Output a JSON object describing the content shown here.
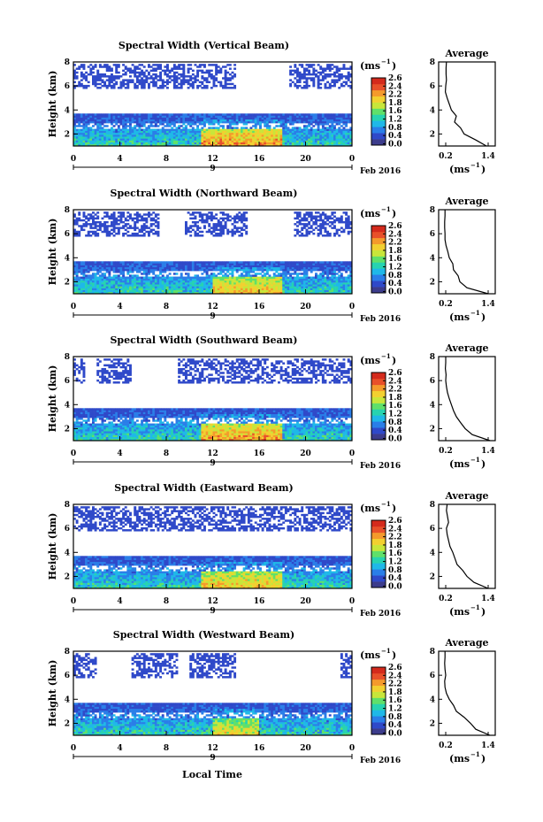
{
  "figure": {
    "xlabel": "Local Time",
    "date_label": "Feb 2016",
    "colorbar_unit": "(ms",
    "colorbar_unit_sup": "−1",
    "colorbar_ticks": [
      "2.6",
      "2.4",
      "2.2",
      "1.8",
      "1.6",
      "1.2",
      "0.8",
      "0.4",
      "0.0"
    ],
    "colorbar_range": [
      0,
      2.6
    ],
    "colormap": [
      "#ffffff",
      "#3c3c8c",
      "#2f49c9",
      "#2a7ee8",
      "#1fb8e8",
      "#27d3b0",
      "#5fe06a",
      "#c8e63a",
      "#f2d030",
      "#f49a2c",
      "#e8502a",
      "#d42a1c"
    ]
  },
  "chart_data": [
    {
      "type": "heatmap",
      "title": "Spectral Width (Vertical Beam)",
      "ylabel": "Height (km)",
      "xlabel": "",
      "x_ticks": [
        "0",
        "4",
        "8",
        "12",
        "16",
        "20",
        "0"
      ],
      "day_marker": "9",
      "xlim": [
        0,
        24
      ],
      "ylim": [
        1,
        8
      ],
      "y_ticks": [
        "2",
        "4",
        "6",
        "8"
      ],
      "summary": {
        "low_layer_km": [
          1,
          3.7
        ],
        "high_sparse_layer_km": [
          5.8,
          7.9
        ],
        "high_sparse_gaps_h": [
          [
            14,
            18.5
          ]
        ],
        "peak_width_window_h": [
          11,
          18
        ],
        "peak_width_value": 2.4
      },
      "average_profile": {
        "title": "Average",
        "xlabel": "(ms",
        "xlabel_sup": "−1",
        "x_ticks": [
          "0.2",
          "1.4"
        ],
        "xlim": [
          0,
          1.6
        ],
        "ylim": [
          1,
          8
        ],
        "y_ticks": [
          "2",
          "4",
          "6",
          "8"
        ],
        "height_km": [
          1.0,
          1.5,
          2.0,
          2.5,
          3.0,
          3.5,
          4.0,
          4.5,
          5.0,
          5.5,
          6.0,
          6.5,
          7.0,
          7.5,
          8.0
        ],
        "width_ms": [
          1.35,
          1.05,
          0.72,
          0.62,
          0.45,
          0.5,
          0.36,
          0.3,
          0.24,
          0.19,
          0.2,
          0.22,
          0.21,
          0.21,
          0.22
        ]
      }
    },
    {
      "type": "heatmap",
      "title": "Spectral Width (Northward Beam)",
      "ylabel": "Height (km)",
      "xlabel": "",
      "x_ticks": [
        "0",
        "4",
        "8",
        "12",
        "16",
        "20",
        "0"
      ],
      "day_marker": "9",
      "xlim": [
        0,
        24
      ],
      "ylim": [
        1,
        8
      ],
      "y_ticks": [
        "2",
        "4",
        "6",
        "8"
      ],
      "summary": {
        "low_layer_km": [
          1,
          3.7
        ],
        "high_sparse_layer_km": [
          5.8,
          7.9
        ],
        "high_sparse_gaps_h": [
          [
            7.5,
            9.5
          ],
          [
            15,
            19
          ]
        ],
        "peak_width_window_h": [
          12,
          18
        ],
        "peak_width_value": 2.2
      },
      "average_profile": {
        "title": "Average",
        "xlabel": "(ms",
        "xlabel_sup": "−1",
        "x_ticks": [
          "0.2",
          "1.4"
        ],
        "xlim": [
          0,
          1.6
        ],
        "ylim": [
          1,
          8
        ],
        "y_ticks": [
          "2",
          "4",
          "6",
          "8"
        ],
        "height_km": [
          1.0,
          1.5,
          2.0,
          2.5,
          3.0,
          3.5,
          4.0,
          4.5,
          5.0,
          5.5,
          6.0,
          6.5,
          7.0,
          7.5,
          8.0
        ],
        "width_ms": [
          1.4,
          0.8,
          0.6,
          0.55,
          0.42,
          0.4,
          0.3,
          0.26,
          0.21,
          0.18,
          0.18,
          0.17,
          0.17,
          0.18,
          0.18
        ]
      }
    },
    {
      "type": "heatmap",
      "title": "Spectral Width (Southward Beam)",
      "ylabel": "Height (km)",
      "xlabel": "",
      "x_ticks": [
        "0",
        "4",
        "8",
        "12",
        "16",
        "20",
        "0"
      ],
      "day_marker": "9",
      "xlim": [
        0,
        24
      ],
      "ylim": [
        1,
        8
      ],
      "y_ticks": [
        "2",
        "4",
        "6",
        "8"
      ],
      "summary": {
        "low_layer_km": [
          1,
          3.7
        ],
        "high_sparse_layer_km": [
          5.8,
          7.9
        ],
        "high_sparse_gaps_h": [
          [
            1,
            2
          ],
          [
            5,
            9
          ]
        ],
        "peak_width_window_h": [
          11,
          18
        ],
        "peak_width_value": 2.4
      },
      "average_profile": {
        "title": "Average",
        "xlabel": "(ms",
        "xlabel_sup": "−1",
        "x_ticks": [
          "0.2",
          "1.4"
        ],
        "xlim": [
          0,
          1.6
        ],
        "ylim": [
          1,
          8
        ],
        "y_ticks": [
          "2",
          "4",
          "6",
          "8"
        ],
        "height_km": [
          1.0,
          1.5,
          2.0,
          2.5,
          3.0,
          3.5,
          4.0,
          4.5,
          5.0,
          5.5,
          6.0,
          6.5,
          7.0,
          7.5,
          8.0
        ],
        "width_ms": [
          1.45,
          0.95,
          0.75,
          0.62,
          0.5,
          0.42,
          0.36,
          0.3,
          0.25,
          0.22,
          0.2,
          0.21,
          0.19,
          0.2,
          0.2
        ]
      }
    },
    {
      "type": "heatmap",
      "title": "Spectral Width (Eastward Beam)",
      "ylabel": "Height (km)",
      "xlabel": "",
      "x_ticks": [
        "0",
        "4",
        "8",
        "12",
        "16",
        "20",
        "0"
      ],
      "day_marker": "9",
      "xlim": [
        0,
        24
      ],
      "ylim": [
        1,
        8
      ],
      "y_ticks": [
        "2",
        "4",
        "6",
        "8"
      ],
      "summary": {
        "low_layer_km": [
          1,
          3.7
        ],
        "high_sparse_layer_km": [
          5.8,
          7.9
        ],
        "high_sparse_gaps_h": [],
        "peak_width_window_h": [
          11,
          18
        ],
        "peak_width_value": 2.2
      },
      "average_profile": {
        "title": "Average",
        "xlabel": "(ms",
        "xlabel_sup": "−1",
        "x_ticks": [
          "0.2",
          "1.4"
        ],
        "xlim": [
          0,
          1.6
        ],
        "ylim": [
          1,
          8
        ],
        "y_ticks": [
          "2",
          "4",
          "6",
          "8"
        ],
        "height_km": [
          1.0,
          1.5,
          2.0,
          2.5,
          3.0,
          3.5,
          4.0,
          4.5,
          5.0,
          5.5,
          6.0,
          6.5,
          7.0,
          7.5,
          8.0
        ],
        "width_ms": [
          1.4,
          1.0,
          0.8,
          0.68,
          0.52,
          0.46,
          0.4,
          0.32,
          0.28,
          0.24,
          0.22,
          0.28,
          0.25,
          0.22,
          0.24
        ]
      }
    },
    {
      "type": "heatmap",
      "title": "Spectral Width (Westward Beam)",
      "ylabel": "Height (km)",
      "xlabel": "Local Time",
      "x_ticks": [
        "0",
        "4",
        "8",
        "12",
        "16",
        "20",
        "0"
      ],
      "day_marker": "9",
      "xlim": [
        0,
        24
      ],
      "ylim": [
        1,
        8
      ],
      "y_ticks": [
        "2",
        "4",
        "6",
        "8"
      ],
      "summary": {
        "low_layer_km": [
          1,
          3.7
        ],
        "high_sparse_layer_km": [
          5.8,
          7.9
        ],
        "high_sparse_gaps_h": [
          [
            2,
            5
          ],
          [
            9,
            10
          ],
          [
            14,
            23
          ]
        ],
        "peak_width_window_h": [
          12,
          16
        ],
        "peak_width_value": 2.0
      },
      "average_profile": {
        "title": "Average",
        "xlabel": "(ms",
        "xlabel_sup": "−1",
        "x_ticks": [
          "0.2",
          "1.4"
        ],
        "xlim": [
          0,
          1.6
        ],
        "ylim": [
          1,
          8
        ],
        "y_ticks": [
          "2",
          "4",
          "6",
          "8"
        ],
        "height_km": [
          1.0,
          1.5,
          2.0,
          2.5,
          3.0,
          3.5,
          4.0,
          4.5,
          5.0,
          5.5,
          6.0,
          6.5,
          7.0,
          7.5,
          8.0
        ],
        "width_ms": [
          1.45,
          1.05,
          0.9,
          0.72,
          0.5,
          0.42,
          0.3,
          0.22,
          0.18,
          0.17,
          0.2,
          0.18,
          0.17,
          0.18,
          0.18
        ]
      }
    }
  ]
}
